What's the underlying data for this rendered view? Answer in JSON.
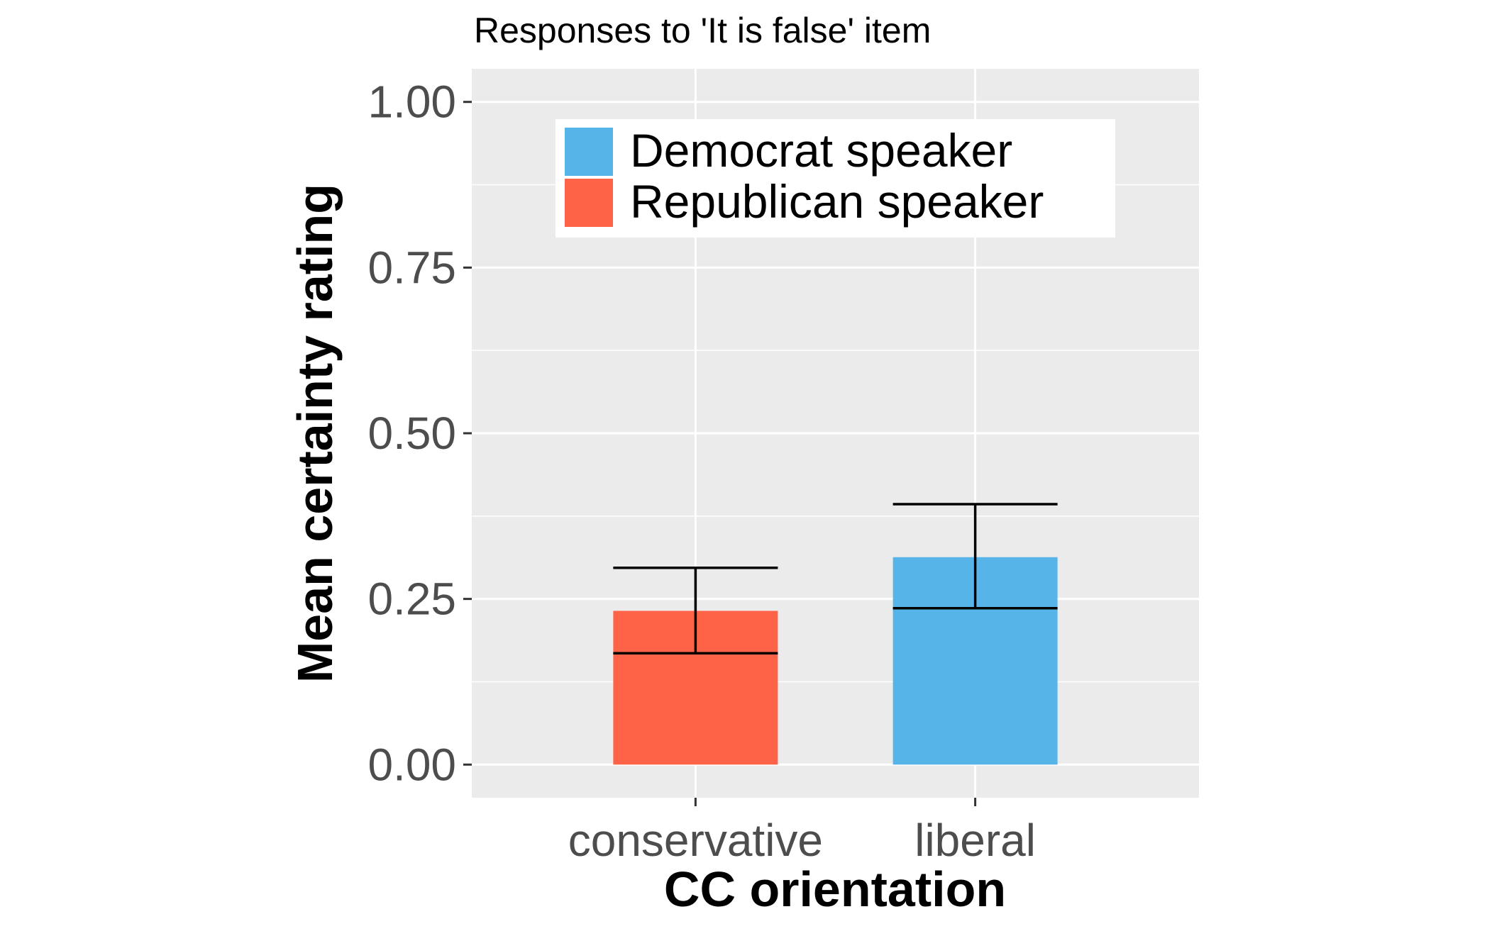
{
  "chart_data": {
    "type": "bar",
    "title": "Responses to 'It is false' item",
    "xlabel": "CC orientation",
    "ylabel": "Mean certainty rating",
    "categories": [
      "conservative",
      "liberal"
    ],
    "ylim": [
      -0.05,
      1.05
    ],
    "yticks": [
      "0.00",
      "0.25",
      "0.50",
      "0.75",
      "1.00"
    ],
    "ytick_values": [
      0.0,
      0.25,
      0.5,
      0.75,
      1.0
    ],
    "grid": true,
    "legend_position": "top",
    "series": [
      {
        "name": "Republican speaker",
        "color": "#FF6347",
        "category": "conservative",
        "value": 0.232,
        "error_low": 0.168,
        "error_high": 0.297
      },
      {
        "name": "Democrat speaker",
        "color": "#56B4E9",
        "category": "liberal",
        "value": 0.313,
        "error_low": 0.236,
        "error_high": 0.393
      }
    ],
    "legend": [
      {
        "label": "Democrat speaker",
        "color": "#56B4E9"
      },
      {
        "label": "Republican speaker",
        "color": "#FF6347"
      }
    ]
  }
}
